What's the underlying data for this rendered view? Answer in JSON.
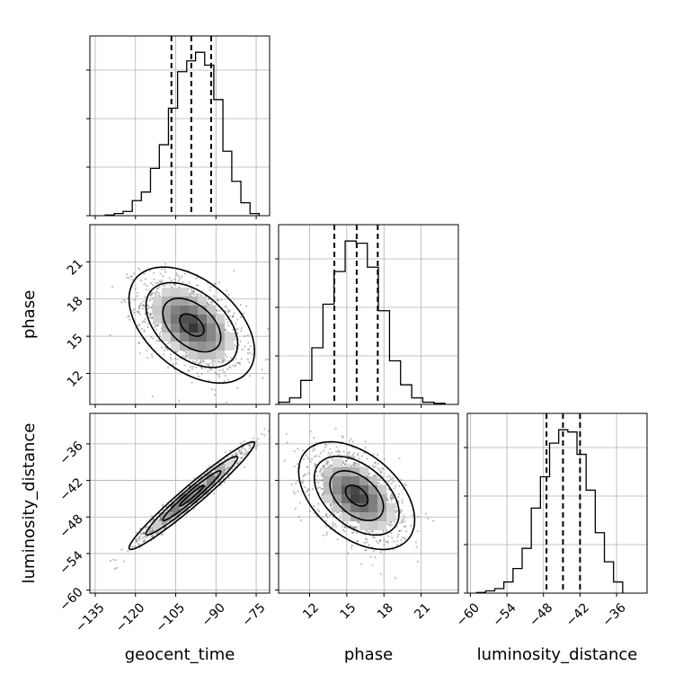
{
  "chart_data": {
    "type": "corner",
    "parameters": [
      "geocent_time",
      "phase",
      "luminosity_distance"
    ],
    "axes": {
      "geocent_time": {
        "label": "geocent_time",
        "range": [
          -137,
          -70
        ],
        "ticks": [
          -135,
          -120,
          -105,
          -90,
          -75
        ],
        "tick_labels": [
          "−135",
          "−120",
          "−105",
          "−90",
          "−75"
        ]
      },
      "phase": {
        "label": "phase",
        "range": [
          9.5,
          24
        ],
        "ticks": [
          12,
          15,
          18,
          21
        ],
        "tick_labels": [
          "12",
          "15",
          "18",
          "21"
        ]
      },
      "luminosity_distance": {
        "label": "luminosity_distance",
        "range": [
          -60.5,
          -31
        ],
        "ticks": [
          -60,
          -54,
          -48,
          -42,
          -36
        ],
        "tick_labels": [
          "−60",
          "−54",
          "−48",
          "−42",
          "−36"
        ]
      }
    },
    "histograms": [
      {
        "parameter": "geocent_time",
        "bin_edges": [
          -131.3,
          -127.9,
          -124.6,
          -121.2,
          -117.8,
          -114.4,
          -111.1,
          -107.7,
          -104.3,
          -100.9,
          -97.6,
          -94.2,
          -90.8,
          -87.4,
          -84.1,
          -80.7,
          -77.3,
          -73.9
        ],
        "counts": [
          0.3,
          1,
          2,
          7,
          11,
          22,
          33,
          50,
          67,
          72,
          76,
          70,
          54,
          30,
          16,
          6,
          1
        ],
        "quantiles": [
          -106.6,
          -99.2,
          -91.8
        ]
      },
      {
        "parameter": "phase",
        "bin_edges": [
          9.5,
          10.39,
          11.29,
          12.18,
          13.08,
          13.97,
          14.87,
          15.76,
          16.66,
          17.55,
          18.45,
          19.34,
          20.24,
          21.13,
          22.03,
          22.92
        ],
        "counts": [
          1,
          3,
          11,
          26,
          46,
          61,
          75,
          74,
          63,
          43,
          20,
          9,
          3,
          1,
          0.5
        ],
        "quantiles": [
          14.0,
          15.8,
          17.5
        ]
      },
      {
        "parameter": "luminosity_distance",
        "bin_edges": [
          -59.0,
          -57.5,
          -56.0,
          -54.5,
          -53.0,
          -51.5,
          -50.0,
          -48.5,
          -47.0,
          -45.5,
          -44.0,
          -42.5,
          -41.0,
          -39.5,
          -38.0,
          -36.5,
          -35.0
        ],
        "counts": [
          0.3,
          1,
          2,
          5,
          11,
          20,
          38,
          52,
          67,
          73,
          72,
          62,
          46,
          27,
          14,
          5
        ],
        "quantiles": [
          -47.5,
          -44.8,
          -42.0
        ]
      }
    ],
    "pairs": [
      {
        "x": "geocent_time",
        "y": "phase",
        "center": [
          -99.0,
          15.9
        ],
        "sigma": [
          9,
          1.8
        ],
        "correlation": -0.45,
        "contour_levels": [
          0.5,
          1.2,
          1.9,
          2.6
        ]
      },
      {
        "x": "geocent_time",
        "y": "luminosity_distance",
        "center": [
          -99.0,
          -44.5
        ],
        "sigma": [
          9,
          3.4
        ],
        "correlation": 0.97,
        "contour_levels": [
          0.5,
          1.2,
          1.9,
          2.6
        ]
      },
      {
        "x": "phase",
        "y": "luminosity_distance",
        "center": [
          15.8,
          -44.5
        ],
        "sigma": [
          1.8,
          3.4
        ],
        "correlation": -0.45,
        "contour_levels": [
          0.5,
          1.2,
          1.9,
          2.6
        ]
      }
    ],
    "grid": true
  }
}
